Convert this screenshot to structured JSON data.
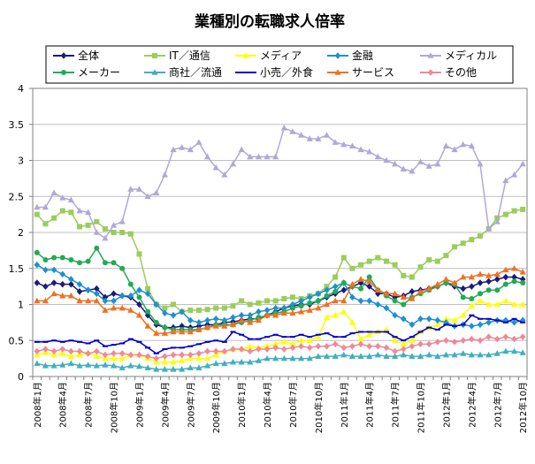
{
  "chart_data": {
    "type": "line",
    "title": "業種別の転職求人倍率",
    "xlabel": "",
    "ylabel": "",
    "ylim": [
      0,
      4
    ],
    "yticks": [
      "0",
      "0.5",
      "1",
      "1.5",
      "2",
      "2.5",
      "3",
      "3.5",
      "4"
    ],
    "ytick_values": [
      0,
      0.5,
      1,
      1.5,
      2,
      2.5,
      3,
      3.5,
      4
    ],
    "grid": true,
    "legend_position": "top",
    "x_tick_labels": [
      "2008年1月",
      "2008年4月",
      "2008年7月",
      "2008年10月",
      "2009年1月",
      "2009年4月",
      "2009年7月",
      "2009年10月",
      "2010年1月",
      "2010年4月",
      "2010年7月",
      "2010年10月",
      "2011年1月",
      "2011年4月",
      "2011年7月",
      "2011年10月",
      "2012年1月",
      "2012年4月",
      "2012年7月",
      "2012年10月"
    ],
    "x_tick_indices": [
      0,
      3,
      6,
      9,
      12,
      15,
      18,
      21,
      24,
      27,
      30,
      33,
      36,
      39,
      42,
      45,
      48,
      51,
      54,
      57
    ],
    "n_points": 58,
    "series": [
      {
        "name": "全体",
        "color": "#1a1a80",
        "marker": "diamond",
        "values": [
          1.3,
          1.25,
          1.3,
          1.28,
          1.28,
          1.18,
          1.2,
          1.22,
          1.1,
          1.15,
          1.12,
          1.1,
          1.0,
          0.85,
          0.72,
          0.68,
          0.68,
          0.7,
          0.68,
          0.7,
          0.72,
          0.72,
          0.75,
          0.76,
          0.78,
          0.8,
          0.8,
          0.85,
          0.9,
          0.95,
          0.98,
          1.0,
          1.0,
          1.05,
          1.1,
          1.15,
          1.2,
          1.25,
          1.3,
          1.25,
          1.15,
          1.15,
          1.1,
          1.12,
          1.18,
          1.2,
          1.22,
          1.25,
          1.3,
          1.25,
          1.22,
          1.25,
          1.3,
          1.32,
          1.35,
          1.38,
          1.38,
          1.35
        ]
      },
      {
        "name": "IT／通信",
        "color": "#9acd5a",
        "marker": "square",
        "values": [
          2.25,
          2.12,
          2.2,
          2.3,
          2.28,
          2.08,
          2.1,
          2.15,
          2.05,
          2.0,
          2.0,
          1.98,
          1.7,
          1.22,
          1.0,
          0.95,
          1.0,
          0.9,
          0.92,
          0.92,
          0.93,
          0.95,
          0.95,
          0.98,
          1.05,
          1.0,
          1.02,
          1.05,
          1.05,
          1.08,
          1.1,
          1.08,
          1.12,
          1.15,
          1.25,
          1.38,
          1.65,
          1.5,
          1.55,
          1.6,
          1.65,
          1.6,
          1.55,
          1.4,
          1.38,
          1.52,
          1.62,
          1.6,
          1.68,
          1.8,
          1.85,
          1.9,
          1.95,
          2.05,
          2.2,
          2.25,
          2.3,
          2.32
        ]
      },
      {
        "name": "メディア",
        "color": "#ffff00",
        "marker": "triangle",
        "values": [
          0.3,
          0.33,
          0.3,
          0.32,
          0.28,
          0.3,
          0.33,
          0.28,
          0.25,
          0.25,
          0.25,
          0.3,
          0.3,
          0.25,
          0.2,
          0.2,
          0.2,
          0.22,
          0.25,
          0.25,
          0.25,
          0.3,
          0.35,
          0.38,
          0.38,
          0.42,
          0.4,
          0.42,
          0.45,
          0.48,
          0.45,
          0.5,
          0.5,
          0.55,
          0.82,
          0.85,
          0.9,
          0.75,
          0.52,
          0.58,
          0.62,
          0.65,
          0.5,
          0.45,
          0.5,
          0.62,
          0.68,
          0.72,
          0.8,
          0.78,
          0.85,
          0.98,
          1.05,
          1.0,
          1.0,
          1.05,
          1.0,
          1.0
        ]
      },
      {
        "name": "金融",
        "color": "#1e90d0",
        "marker": "diamond",
        "values": [
          1.55,
          1.48,
          1.48,
          1.42,
          1.35,
          1.28,
          1.2,
          1.15,
          1.05,
          1.05,
          1.12,
          1.12,
          1.2,
          1.15,
          1.0,
          0.88,
          0.85,
          0.9,
          0.78,
          0.75,
          0.78,
          0.8,
          0.78,
          0.82,
          0.85,
          0.85,
          0.9,
          0.92,
          0.95,
          0.95,
          1.0,
          1.05,
          1.1,
          1.15,
          1.2,
          1.25,
          1.3,
          1.1,
          1.05,
          1.05,
          1.0,
          0.95,
          0.85,
          0.8,
          0.72,
          0.8,
          0.8,
          0.78,
          0.75,
          0.7,
          0.72,
          0.7,
          0.72,
          0.75,
          0.78,
          0.78,
          0.75,
          0.78
        ]
      },
      {
        "name": "メディカル",
        "color": "#b0a8d8",
        "marker": "triangle",
        "values": [
          2.35,
          2.35,
          2.55,
          2.48,
          2.45,
          2.3,
          2.28,
          2.0,
          1.92,
          2.1,
          2.15,
          2.6,
          2.6,
          2.5,
          2.55,
          2.8,
          3.15,
          3.18,
          3.15,
          3.25,
          3.05,
          2.9,
          2.8,
          2.95,
          3.15,
          3.05,
          3.05,
          3.05,
          3.05,
          3.45,
          3.4,
          3.35,
          3.3,
          3.3,
          3.35,
          3.25,
          3.22,
          3.2,
          3.15,
          3.12,
          3.05,
          3.0,
          2.95,
          2.88,
          2.85,
          2.98,
          2.92,
          2.95,
          3.2,
          3.15,
          3.22,
          3.2,
          2.95,
          2.05,
          2.15,
          2.72,
          2.8,
          2.95
        ]
      },
      {
        "name": "メーカー",
        "color": "#22aa55",
        "marker": "circle",
        "values": [
          1.72,
          1.62,
          1.65,
          1.65,
          1.62,
          1.58,
          1.6,
          1.78,
          1.58,
          1.58,
          1.5,
          1.28,
          1.1,
          0.9,
          0.75,
          0.68,
          0.65,
          0.65,
          0.65,
          0.65,
          0.68,
          0.72,
          0.72,
          0.72,
          0.75,
          0.78,
          0.82,
          0.85,
          0.88,
          0.9,
          0.95,
          0.98,
          1.02,
          1.05,
          1.12,
          1.18,
          1.3,
          1.25,
          1.22,
          1.38,
          1.2,
          1.12,
          1.05,
          1.0,
          1.1,
          1.15,
          1.2,
          1.25,
          1.3,
          1.28,
          1.1,
          1.08,
          1.15,
          1.2,
          1.2,
          1.28,
          1.32,
          1.3
        ]
      },
      {
        "name": "商社／流通",
        "color": "#40b0c0",
        "marker": "triangle",
        "values": [
          0.18,
          0.15,
          0.15,
          0.16,
          0.18,
          0.15,
          0.16,
          0.15,
          0.16,
          0.15,
          0.12,
          0.15,
          0.14,
          0.12,
          0.1,
          0.1,
          0.1,
          0.1,
          0.12,
          0.12,
          0.15,
          0.18,
          0.18,
          0.2,
          0.2,
          0.2,
          0.22,
          0.25,
          0.25,
          0.25,
          0.25,
          0.25,
          0.25,
          0.28,
          0.28,
          0.28,
          0.3,
          0.28,
          0.28,
          0.28,
          0.3,
          0.28,
          0.28,
          0.3,
          0.28,
          0.28,
          0.3,
          0.28,
          0.3,
          0.3,
          0.32,
          0.3,
          0.3,
          0.3,
          0.32,
          0.35,
          0.35,
          0.33
        ]
      },
      {
        "name": "小売／外食",
        "color": "#0000cc",
        "marker": "dash",
        "values": [
          0.48,
          0.48,
          0.5,
          0.48,
          0.5,
          0.48,
          0.46,
          0.5,
          0.42,
          0.44,
          0.46,
          0.52,
          0.48,
          0.4,
          0.32,
          0.38,
          0.4,
          0.4,
          0.42,
          0.45,
          0.48,
          0.5,
          0.48,
          0.62,
          0.58,
          0.52,
          0.52,
          0.55,
          0.58,
          0.55,
          0.55,
          0.58,
          0.55,
          0.58,
          0.6,
          0.55,
          0.55,
          0.6,
          0.62,
          0.62,
          0.62,
          0.62,
          0.55,
          0.5,
          0.55,
          0.62,
          0.68,
          0.65,
          0.72,
          0.7,
          0.72,
          0.85,
          0.8,
          0.8,
          0.78,
          0.75,
          0.8,
          0.75
        ]
      },
      {
        "name": "サービス",
        "color": "#f07020",
        "marker": "triangle",
        "values": [
          1.05,
          1.05,
          1.15,
          1.12,
          1.12,
          1.05,
          1.05,
          1.05,
          0.92,
          0.95,
          0.95,
          0.92,
          0.85,
          0.7,
          0.6,
          0.6,
          0.62,
          0.62,
          0.62,
          0.65,
          0.68,
          0.7,
          0.7,
          0.72,
          0.78,
          0.75,
          0.78,
          0.85,
          0.85,
          0.88,
          0.88,
          0.9,
          0.92,
          0.95,
          1.0,
          1.05,
          1.05,
          1.28,
          1.35,
          1.32,
          1.2,
          1.15,
          1.15,
          1.1,
          1.08,
          1.18,
          1.22,
          1.28,
          1.35,
          1.3,
          1.38,
          1.38,
          1.42,
          1.4,
          1.42,
          1.48,
          1.5,
          1.45
        ]
      },
      {
        "name": "その他",
        "color": "#f08898",
        "marker": "diamond",
        "values": [
          0.35,
          0.38,
          0.35,
          0.38,
          0.35,
          0.35,
          0.32,
          0.35,
          0.3,
          0.32,
          0.32,
          0.3,
          0.3,
          0.28,
          0.25,
          0.28,
          0.3,
          0.3,
          0.3,
          0.32,
          0.35,
          0.35,
          0.35,
          0.38,
          0.38,
          0.35,
          0.38,
          0.38,
          0.4,
          0.38,
          0.4,
          0.42,
          0.4,
          0.42,
          0.42,
          0.45,
          0.4,
          0.42,
          0.45,
          0.42,
          0.42,
          0.4,
          0.35,
          0.38,
          0.42,
          0.45,
          0.45,
          0.48,
          0.5,
          0.48,
          0.5,
          0.52,
          0.5,
          0.55,
          0.52,
          0.55,
          0.52,
          0.55
        ]
      }
    ]
  }
}
